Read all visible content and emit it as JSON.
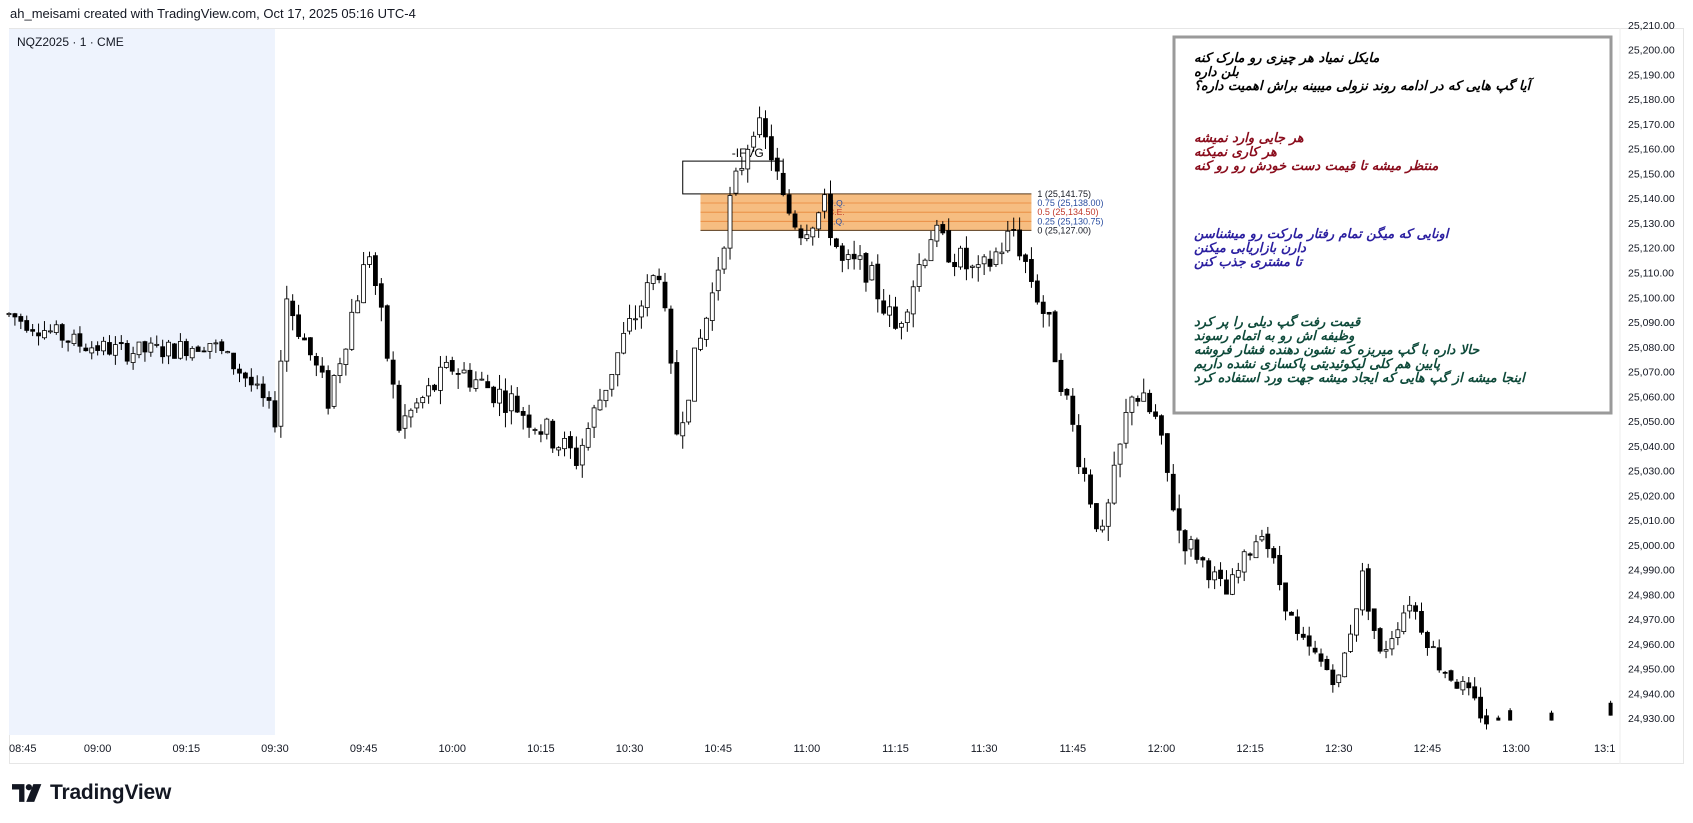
{
  "header": {
    "attribution": "ah_meisami created with TradingView.com, Oct 17, 2025 05:16 UTC-4"
  },
  "symbol_label": "NQZ2025 · 1 · CME",
  "brand": {
    "logo_text": "TradingView",
    "logo_icon": "tradingview-logo-icon"
  },
  "colors": {
    "session_shade": "#eef3fd",
    "candle": "#000000",
    "zone_fill": "#f5b26b",
    "zone_border": "#e8873a",
    "note_black": "#000000",
    "note_red": "#8a0c1c",
    "note_blue": "#2b1fa0",
    "note_green": "#0e4a3a"
  },
  "ifvg": {
    "label": "-IFVG",
    "level_labels": [
      "1 (25,141.75)",
      "0.75 (25,138.00)",
      "0.5 (25,134.50)",
      "0.25 (25,130.75)",
      "0 (25,127.00)"
    ],
    "quadrant_labels": [
      "U.Q.",
      "C.E.",
      "L.Q."
    ]
  },
  "notes": {
    "group_black": [
      "مایکل نمیاد هر چیزی رو مارک کنه",
      "بلن داره",
      "آیا گپ هایی که در ادامه روند نزولی میبینه براش اهمیت داره؟"
    ],
    "group_red": [
      "هر جایی وارد نمیشه",
      "هر کاری نمیکنه",
      "منتظر میشه تا قیمت دست خودش رو رو کنه"
    ],
    "group_blue": [
      "اونایی که میگن تمام رفتار مارکت رو میشناسن",
      "دارن بازاریابی میکنن",
      "تا مشتری جذب کنن"
    ],
    "group_green": [
      "قیمت رفت گپ دیلی را پر کرد",
      "وظیفه اش رو به اتمام رسوند",
      "حالا داره با گپ میریزه که نشون دهنده فشار فروشه",
      "پایین هم کلی لیکوئیدیتی پاکسازی نشده داریم",
      "اینجا میشه از گپ هایی که ایجاد میشه جهت ورد استفاده کرد"
    ]
  },
  "chart_data": {
    "type": "candlestick",
    "symbol": "NQZ2025",
    "interval": "1",
    "exchange": "CME",
    "x_ticks": [
      "08:45",
      "09:00",
      "09:15",
      "09:30",
      "09:45",
      "10:00",
      "10:15",
      "10:30",
      "10:45",
      "11:00",
      "11:15",
      "11:30",
      "11:45",
      "12:00",
      "12:15",
      "12:30",
      "12:45",
      "13:00",
      "13:1"
    ],
    "y_ticks": [
      "24,930.00",
      "24,940.00",
      "24,950.00",
      "24,960.00",
      "24,970.00",
      "24,980.00",
      "24,990.00",
      "25,000.00",
      "25,010.00",
      "25,020.00",
      "25,030.00",
      "25,040.00",
      "25,050.00",
      "25,060.00",
      "25,070.00",
      "25,080.00",
      "25,090.00",
      "25,100.00",
      "25,110.00",
      "25,120.00",
      "25,130.00",
      "25,140.00",
      "25,150.00",
      "25,160.00",
      "25,170.00",
      "25,180.00",
      "25,190.00",
      "25,200.00",
      "25,210.00"
    ],
    "ylim": [
      24926,
      25212
    ],
    "xlim_minutes_from_0845": [
      0,
      283
    ],
    "session_shade_minutes": [
      0,
      45
    ],
    "ifvg_zone": {
      "low": 25127.0,
      "high": 25141.75,
      "start_minute": 117,
      "end_minute": 173
    },
    "ifvg_box": {
      "low": 25141.75,
      "high": 25155.0,
      "start_minute": 114,
      "end_minute": 131
    },
    "price_path_key_points": [
      [
        0,
        25093
      ],
      [
        12,
        25081
      ],
      [
        20,
        25078
      ],
      [
        28,
        25079
      ],
      [
        34,
        25082
      ],
      [
        40,
        25068
      ],
      [
        45,
        25051
      ],
      [
        47,
        25100
      ],
      [
        54,
        25059
      ],
      [
        61,
        25119
      ],
      [
        66,
        25048
      ],
      [
        75,
        25072
      ],
      [
        85,
        25058
      ],
      [
        96,
        25035
      ],
      [
        104,
        25083
      ],
      [
        110,
        25112
      ],
      [
        113,
        25046
      ],
      [
        119,
        25101
      ],
      [
        122,
        25138
      ],
      [
        126,
        25171
      ],
      [
        129,
        25158
      ],
      [
        131,
        25138
      ],
      [
        134,
        25128
      ],
      [
        138,
        25136
      ],
      [
        141,
        25113
      ],
      [
        145,
        25112
      ],
      [
        150,
        25087
      ],
      [
        156,
        25126
      ],
      [
        164,
        25108
      ],
      [
        170,
        25127
      ],
      [
        176,
        25088
      ],
      [
        181,
        25037
      ],
      [
        185,
        25002
      ],
      [
        190,
        25063
      ],
      [
        194,
        25050
      ],
      [
        198,
        25006
      ],
      [
        206,
        24980
      ],
      [
        212,
        25007
      ],
      [
        218,
        24962
      ],
      [
        225,
        24945
      ],
      [
        229,
        24987
      ],
      [
        232,
        24955
      ],
      [
        237,
        24978
      ],
      [
        242,
        24952
      ],
      [
        246,
        24942
      ],
      [
        250,
        24929
      ]
    ]
  }
}
